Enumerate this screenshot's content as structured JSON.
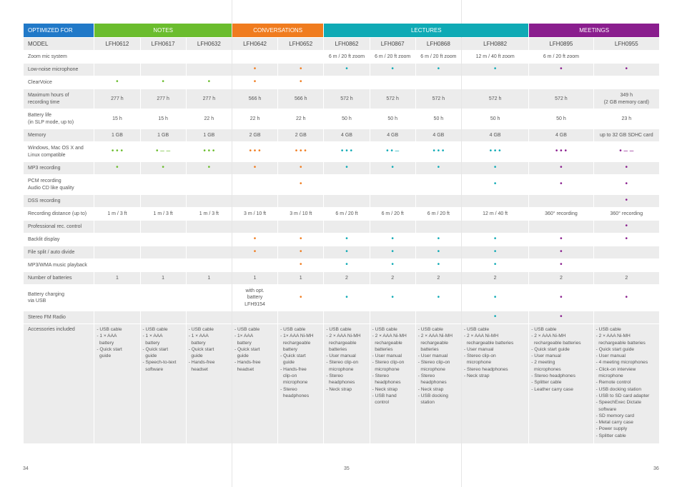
{
  "header": {
    "optimized_for": "OPTIMIZED FOR",
    "categories": [
      {
        "label": "NOTES",
        "color": "#6bbd2e",
        "span": 3
      },
      {
        "label": "CONVERSATIONS",
        "color": "#f07c1f",
        "span": 2
      },
      {
        "label": "LECTURES",
        "color": "#0faab5",
        "span": 4
      },
      {
        "label": "MEETINGS",
        "color": "#8a1e8e",
        "span": 2
      }
    ],
    "opt_color": "#2179c8"
  },
  "model_row": {
    "label": "MODEL",
    "models": [
      "LFH0612",
      "LFH0617",
      "LFH0632",
      "LFH0642",
      "LFH0652",
      "LFH0862",
      "LFH0867",
      "LFH0868",
      "LFH0882",
      "LFH0895",
      "LFH0955"
    ]
  },
  "colors": [
    "#6bbd2e",
    "#6bbd2e",
    "#6bbd2e",
    "#f07c1f",
    "#f07c1f",
    "#0faab5",
    "#0faab5",
    "#0faab5",
    "#0faab5",
    "#8a1e8e",
    "#8a1e8e"
  ],
  "rows": [
    {
      "label": "Zoom mic system",
      "cells": [
        "",
        "",
        "",
        "",
        "",
        "6 m / 20 ft zoom",
        "6 m / 20 ft zoom",
        "6 m / 20 ft zoom",
        "12 m / 40 ft zoom",
        "6 m / 20 ft zoom",
        ""
      ]
    },
    {
      "label": "Low-noise microphone",
      "cells": [
        "",
        "",
        "",
        "•",
        "•",
        "•",
        "•",
        "•",
        "•",
        "•",
        "•"
      ]
    },
    {
      "label": "ClearVoice",
      "cells": [
        "•",
        "•",
        "•",
        "•",
        "•",
        "",
        "",
        "",
        "",
        "",
        ""
      ]
    },
    {
      "label": "Maximum hours of\nrecording time",
      "cells": [
        "277 h",
        "277 h",
        "277 h",
        "566 h",
        "566 h",
        "572 h",
        "572 h",
        "572 h",
        "572 h",
        "572 h",
        "349 h\n(2 GB memory card)"
      ]
    },
    {
      "label": "Battery life\n(in SLP mode, up to)",
      "cells": [
        "15 h",
        "15 h",
        "22 h",
        "22 h",
        "22 h",
        "50 h",
        "50 h",
        "50 h",
        "50 h",
        "50 h",
        "23 h"
      ]
    },
    {
      "label": "Memory",
      "cells": [
        "1 GB",
        "1 GB",
        "1 GB",
        "2 GB",
        "2 GB",
        "4 GB",
        "4 GB",
        "4 GB",
        "4 GB",
        "4 GB",
        "up to 32 GB SDHC card"
      ]
    },
    {
      "label": "Windows, Mac OS X and\nLinux compatible",
      "cells": [
        "• • •",
        "• – –",
        "• • •",
        "• • •",
        "• • •",
        "• • •",
        "• • –",
        "• • •",
        "• • •",
        "• • •",
        "• – –"
      ]
    },
    {
      "label": "MP3 recording",
      "cells": [
        "•",
        "•",
        "•",
        "•",
        "•",
        "•",
        "•",
        "•",
        "•",
        "•",
        "•"
      ]
    },
    {
      "label": "PCM recording\nAudio CD like quality",
      "cells": [
        "",
        "",
        "",
        "",
        "•",
        "",
        "",
        "",
        "•",
        "•",
        "•"
      ]
    },
    {
      "label": "DSS recording",
      "cells": [
        "",
        "",
        "",
        "",
        "",
        "",
        "",
        "",
        "",
        "",
        "•"
      ]
    },
    {
      "label": "Recording distance (up to)",
      "cells": [
        "1 m / 3 ft",
        "1 m / 3 ft",
        "1 m / 3 ft",
        "3 m / 10 ft",
        "3 m / 10 ft",
        "6 m / 20 ft",
        "6 m / 20 ft",
        "6 m / 20 ft",
        "12 m / 40 ft",
        "360° recording",
        "360° recording"
      ]
    },
    {
      "label": "Professional rec. control",
      "cells": [
        "",
        "",
        "",
        "",
        "",
        "",
        "",
        "",
        "",
        "",
        "•"
      ]
    },
    {
      "label": "Backlit display",
      "cells": [
        "",
        "",
        "",
        "•",
        "•",
        "•",
        "•",
        "•",
        "•",
        "•",
        "•"
      ]
    },
    {
      "label": "File split / auto divide",
      "cells": [
        "",
        "",
        "",
        "•",
        "•",
        "•",
        "•",
        "•",
        "•",
        "•",
        ""
      ]
    },
    {
      "label": "MP3/WMA music playback",
      "cells": [
        "",
        "",
        "",
        "",
        "•",
        "•",
        "•",
        "•",
        "•",
        "•",
        ""
      ]
    },
    {
      "label": "Number of batteries",
      "cells": [
        "1",
        "1",
        "1",
        "1",
        "1",
        "2",
        "2",
        "2",
        "2",
        "2",
        "2"
      ]
    },
    {
      "label": "Battery charging\nvia USB",
      "cells": [
        "",
        "",
        "",
        "with opt.\nbattery\nLFH9154",
        "•",
        "•",
        "•",
        "•",
        "•",
        "•",
        "•"
      ]
    },
    {
      "label": "Stereo FM Radio",
      "cells": [
        "",
        "",
        "",
        "",
        "",
        "",
        "",
        "",
        "•",
        "•",
        ""
      ]
    }
  ],
  "accessories": {
    "label": "Accessories included",
    "cells": [
      [
        "- USB cable",
        "- 1 × AAA",
        "  battery",
        "- Quick start",
        "  guide"
      ],
      [
        "- USB cable",
        "- 1 × AAA",
        "  battery",
        "- Quick start",
        "  guide",
        "- Speech-to-text",
        "  software"
      ],
      [
        "- USB cable",
        "- 1 × AAA",
        "  battery",
        "- Quick start",
        "  guide",
        "- Hands-free",
        "  headset"
      ],
      [
        "- USB cable",
        "- 1× AAA",
        "  battery",
        "- Quick start",
        "  guide",
        "- Hands-free",
        "  headset"
      ],
      [
        "- USB cable",
        "- 1× AAA Ni-MH",
        "  rechargeable",
        "  battery",
        "- Quick start",
        "  guide",
        "- Hands-free",
        "  clip-on",
        "  microphone",
        "- Stereo",
        "  headphones"
      ],
      [
        "- USB cable",
        "- 2 × AAA Ni-MH",
        "  rechargeable",
        "  batteries",
        "- User manual",
        "- Stereo clip-on",
        "  microphone",
        "- Stereo",
        "  headphones",
        "- Neck strap"
      ],
      [
        "- USB cable",
        "- 2 × AAA Ni-MH",
        "  rechargeable",
        "  batteries",
        "- User manual",
        "- Stereo clip-on",
        "  microphone",
        "- Stereo",
        "  headphones",
        "- Neck strap",
        "- USB hand",
        "  control"
      ],
      [
        "- USB cable",
        "- 2 × AAA Ni-MH",
        "  rechargeable",
        "  batteries",
        "- User manual",
        "- Stereo clip-on",
        "  microphone",
        "- Stereo",
        "  headphones",
        "- Neck strap",
        "- USB docking",
        "  station"
      ],
      [
        "- USB cable",
        "- 2 × AAA Ni-MH",
        "  rechargeable batteries",
        "- User manual",
        "- Stereo clip-on",
        "  microphone",
        "- Stereo headphones",
        "- Neck strap"
      ],
      [
        "- USB cable",
        "- 2 × AAA Ni-MH",
        "  rechargeable batteries",
        "- Quick start guide",
        "- User manual",
        "- 2 meeting",
        "  microphones",
        "- Stereo headphones",
        "- Splitter cable",
        "- Leather carry case"
      ],
      [
        "- USB cable",
        "- 2 × AAA Ni-MH",
        "  rechargeable batteries",
        "- Quick start guide",
        "- User manual",
        "- 4 meeting microphones",
        "- Click-on interview",
        "  microphone",
        "- Remote control",
        "- USB docking station",
        "- USB to SD card adapter",
        "- SpeechExec Dictate",
        "  software",
        "- SD memory card",
        "- Metal carry case",
        "- Power supply",
        "- Splitter cable"
      ]
    ]
  },
  "page_numbers": [
    "34",
    "35",
    "36"
  ]
}
